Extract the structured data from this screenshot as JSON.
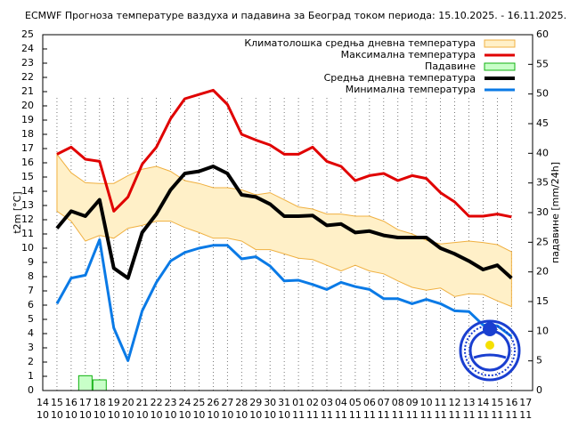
{
  "chart_data": {
    "type": "line",
    "title": "ECMWF Прогноза температуре ваздуха и падавина за Београд током периода: 15.10.2025. - 16.11.2025.",
    "y_label": "t2m [°C]",
    "y2_label": "падавине [mm/24h]",
    "categories": [
      [
        "14",
        "10"
      ],
      [
        "15",
        "10"
      ],
      [
        "16",
        "10"
      ],
      [
        "17",
        "10"
      ],
      [
        "18",
        "10"
      ],
      [
        "19",
        "10"
      ],
      [
        "20",
        "10"
      ],
      [
        "21",
        "10"
      ],
      [
        "22",
        "10"
      ],
      [
        "23",
        "10"
      ],
      [
        "24",
        "10"
      ],
      [
        "25",
        "10"
      ],
      [
        "26",
        "10"
      ],
      [
        "27",
        "10"
      ],
      [
        "28",
        "10"
      ],
      [
        "29",
        "10"
      ],
      [
        "30",
        "10"
      ],
      [
        "31",
        "10"
      ],
      [
        "01",
        "11"
      ],
      [
        "02",
        "11"
      ],
      [
        "03",
        "11"
      ],
      [
        "04",
        "11"
      ],
      [
        "05",
        "11"
      ],
      [
        "06",
        "11"
      ],
      [
        "07",
        "11"
      ],
      [
        "08",
        "11"
      ],
      [
        "09",
        "11"
      ],
      [
        "10",
        "11"
      ],
      [
        "11",
        "11"
      ],
      [
        "12",
        "11"
      ],
      [
        "13",
        "11"
      ],
      [
        "14",
        "11"
      ],
      [
        "15",
        "11"
      ],
      [
        "16",
        "11"
      ],
      [
        "17",
        "11"
      ]
    ],
    "ylim": [
      0,
      25
    ],
    "yticks": [
      0,
      1,
      2,
      3,
      4,
      5,
      6,
      7,
      8,
      9,
      10,
      11,
      12,
      13,
      14,
      15,
      16,
      17,
      18,
      19,
      20,
      21,
      22,
      23,
      24,
      25
    ],
    "y2lim": [
      0,
      60
    ],
    "y2ticks": [
      0,
      5,
      10,
      15,
      20,
      25,
      30,
      35,
      40,
      45,
      50,
      55,
      60
    ],
    "grid": true,
    "legend": "top-right",
    "series": [
      {
        "name": "Климатолошка средња дневна температура",
        "kind": "band",
        "color": "#fff0c8",
        "edge": "#f0b040",
        "upper": [
          null,
          16.6,
          15.3,
          14.6,
          14.55,
          14.55,
          15.1,
          15.55,
          15.75,
          15.4,
          14.75,
          14.55,
          14.25,
          14.25,
          14.1,
          13.75,
          13.9,
          13.4,
          12.9,
          12.75,
          12.4,
          12.4,
          12.25,
          12.25,
          11.9,
          11.3,
          11.0,
          10.55,
          10.3,
          10.4,
          10.5,
          10.4,
          10.25,
          9.75,
          null
        ],
        "lower": [
          null,
          12.6,
          11.9,
          10.5,
          10.9,
          10.7,
          11.4,
          11.6,
          11.9,
          11.9,
          11.45,
          11.1,
          10.7,
          10.7,
          10.5,
          9.9,
          9.9,
          9.6,
          9.3,
          9.2,
          8.8,
          8.4,
          8.8,
          8.4,
          8.2,
          7.7,
          7.25,
          7.05,
          7.2,
          6.6,
          6.8,
          6.75,
          6.3,
          5.9,
          null
        ]
      },
      {
        "name": "Максимална температура",
        "kind": "line",
        "color": "#e00000",
        "width": 3,
        "values": [
          null,
          16.6,
          17.1,
          16.25,
          16.1,
          12.6,
          13.6,
          15.9,
          17.1,
          19.1,
          20.5,
          20.8,
          21.1,
          20.1,
          18.0,
          17.6,
          17.25,
          16.6,
          16.6,
          17.1,
          16.1,
          15.75,
          14.75,
          15.1,
          15.25,
          14.75,
          15.1,
          14.9,
          13.9,
          13.25,
          12.25,
          12.25,
          12.4,
          12.2,
          null
        ]
      },
      {
        "name": "Падавине",
        "kind": "bar",
        "axis": "y2",
        "color": "#c8ffc8",
        "edge": "#10b010",
        "values": [
          null,
          0,
          0,
          2.5,
          1.8,
          0,
          0,
          0,
          0,
          0,
          0,
          0,
          0,
          0,
          0,
          0,
          0,
          0,
          0,
          0,
          0,
          0,
          0,
          0,
          0,
          0,
          0,
          0,
          0,
          0,
          0,
          0,
          0,
          0,
          null
        ]
      },
      {
        "name": "Средња дневна температура",
        "kind": "line",
        "color": "#000000",
        "width": 4,
        "values": [
          null,
          11.4,
          12.6,
          12.25,
          13.4,
          8.6,
          7.9,
          11.1,
          12.4,
          14.1,
          15.25,
          15.4,
          15.75,
          15.25,
          13.75,
          13.6,
          13.1,
          12.25,
          12.25,
          12.3,
          11.6,
          11.7,
          11.1,
          11.2,
          10.9,
          10.75,
          10.75,
          10.75,
          10.0,
          9.6,
          9.1,
          8.5,
          8.8,
          7.9,
          null
        ]
      },
      {
        "name": "Минимална температура",
        "kind": "line",
        "color": "#0a7ae6",
        "width": 3,
        "values": [
          null,
          6.1,
          7.9,
          8.1,
          10.6,
          4.4,
          2.1,
          5.6,
          7.6,
          9.1,
          9.7,
          10.0,
          10.2,
          10.2,
          9.25,
          9.4,
          8.75,
          7.7,
          7.75,
          7.45,
          7.1,
          7.6,
          7.3,
          7.1,
          6.45,
          6.45,
          6.1,
          6.4,
          6.1,
          5.6,
          5.55,
          4.6,
          4.55,
          3.8,
          null
        ]
      }
    ]
  }
}
